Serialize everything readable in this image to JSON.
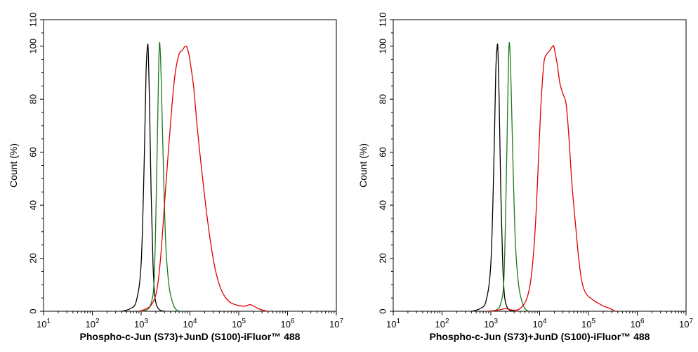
{
  "chart_data": [
    {
      "type": "line",
      "xscale": "log",
      "xlim": [
        10,
        10000000
      ],
      "ylim": [
        0,
        110
      ],
      "xlabel": "Phospho-c-Jun (S73)+JunD (S100)-iFluor™ 488",
      "ylabel": "Count  (%)",
      "x_ticks": [
        {
          "base": "10",
          "exp": "1"
        },
        {
          "base": "10",
          "exp": "2"
        },
        {
          "base": "10",
          "exp": "3"
        },
        {
          "base": "10",
          "exp": "4"
        },
        {
          "base": "10",
          "exp": "5"
        },
        {
          "base": "10",
          "exp": "6"
        },
        {
          "base": "10",
          "exp": "7"
        }
      ],
      "y_ticks": [
        "0",
        "20",
        "40",
        "60",
        "80",
        "100",
        "110"
      ],
      "series": [
        {
          "name": "black",
          "color": "#000000",
          "x": [
            400,
            600,
            800,
            1000,
            1150,
            1260,
            1350,
            1400,
            1480,
            1600,
            1750,
            1900,
            2100,
            2400,
            3000
          ],
          "y": [
            0,
            1,
            4,
            18,
            55,
            90,
            100,
            98,
            80,
            45,
            18,
            6,
            2,
            0.5,
            0
          ]
        },
        {
          "name": "green",
          "color": "#1a7a1a",
          "x": [
            900,
            1300,
            1600,
            1850,
            2050,
            2250,
            2350,
            2450,
            2600,
            2850,
            3200,
            3700,
            4300,
            5000,
            6000
          ],
          "y": [
            0,
            0.5,
            3,
            12,
            45,
            85,
            100,
            99,
            85,
            55,
            25,
            10,
            4,
            1,
            0
          ]
        },
        {
          "name": "red",
          "color": "#e00000",
          "x": [
            900,
            1300,
            1700,
            2100,
            2500,
            3000,
            3600,
            4300,
            5000,
            6000,
            7000,
            8000,
            8700,
            9500,
            10500,
            12000,
            14000,
            17000,
            21000,
            26000,
            32000,
            40000,
            50000,
            65000,
            85000,
            110000,
            140000,
            170000,
            200000,
            250000,
            330000,
            400000
          ],
          "y": [
            0,
            1,
            3,
            8,
            20,
            40,
            60,
            78,
            90,
            97,
            98.5,
            100,
            99.5,
            97,
            92,
            84,
            70,
            55,
            40,
            27,
            17,
            10,
            6,
            3.5,
            2.5,
            2,
            2,
            2.5,
            2,
            1,
            0.3,
            0
          ]
        }
      ]
    },
    {
      "type": "line",
      "xscale": "log",
      "xlim": [
        10,
        10000000
      ],
      "ylim": [
        0,
        110
      ],
      "xlabel": "Phospho-c-Jun (S73)+JunD (S100)-iFluor™ 488",
      "ylabel": "Count  (%)",
      "x_ticks": [
        {
          "base": "10",
          "exp": "1"
        },
        {
          "base": "10",
          "exp": "2"
        },
        {
          "base": "10",
          "exp": "3"
        },
        {
          "base": "10",
          "exp": "4"
        },
        {
          "base": "10",
          "exp": "5"
        },
        {
          "base": "10",
          "exp": "6"
        },
        {
          "base": "10",
          "exp": "7"
        }
      ],
      "y_ticks": [
        "0",
        "20",
        "40",
        "60",
        "80",
        "100",
        "110"
      ],
      "series": [
        {
          "name": "black",
          "color": "#000000",
          "x": [
            400,
            600,
            800,
            1000,
            1150,
            1260,
            1350,
            1400,
            1480,
            1600,
            1750,
            1900,
            2100,
            2400,
            3000
          ],
          "y": [
            0,
            1,
            4,
            18,
            55,
            90,
            100,
            98,
            80,
            45,
            18,
            6,
            2,
            0.5,
            0
          ]
        },
        {
          "name": "green",
          "color": "#1a7a1a",
          "x": [
            900,
            1300,
            1600,
            1850,
            2050,
            2250,
            2350,
            2450,
            2600,
            2850,
            3200,
            3700,
            4300,
            5000,
            6000
          ],
          "y": [
            0,
            0.5,
            3,
            12,
            45,
            85,
            100,
            99,
            85,
            55,
            25,
            10,
            4,
            1,
            0
          ]
        },
        {
          "name": "red",
          "color": "#e00000",
          "x": [
            900,
            1500,
            2000,
            2600,
            3500,
            4500,
            5500,
            6500,
            7500,
            8500,
            9500,
            10500,
            11500,
            12500,
            14000,
            15500,
            17000,
            18500,
            19500,
            21000,
            23000,
            26000,
            30000,
            35000,
            40000,
            45000,
            50000,
            56000,
            63000,
            72000,
            82000,
            95000,
            110000,
            130000,
            160000,
            200000,
            280000,
            350000
          ],
          "y": [
            0,
            0.5,
            1,
            0.5,
            0.5,
            2,
            5,
            11,
            22,
            38,
            58,
            76,
            88,
            95,
            97,
            98,
            99,
            100,
            100,
            97,
            93,
            86,
            82,
            78,
            65,
            50,
            40,
            30,
            20,
            12,
            8,
            6,
            5,
            4,
            3,
            2,
            1,
            0
          ]
        }
      ]
    }
  ]
}
